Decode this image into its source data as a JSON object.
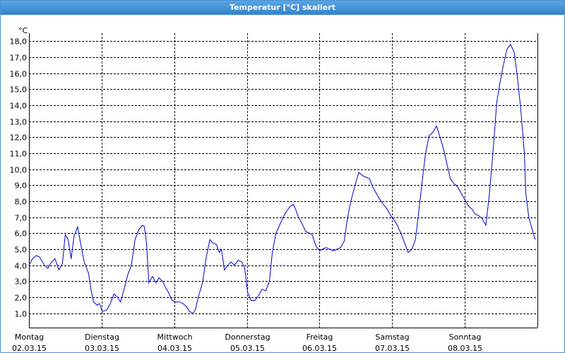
{
  "window_title": "Temperatur [°C] skaliert",
  "chart_data": {
    "type": "line",
    "y_unit": "°C",
    "xlim": [
      0,
      7
    ],
    "ylim": [
      0.1,
      18.5
    ],
    "grid": true,
    "xticks": [
      {
        "value": 0,
        "label": [
          "Montag",
          "02.03.15"
        ]
      },
      {
        "value": 1,
        "label": [
          "Dienstag",
          "03.03.15"
        ]
      },
      {
        "value": 2,
        "label": [
          "Mittwoch",
          "04.03.15"
        ]
      },
      {
        "value": 3,
        "label": [
          "Donnerstag",
          "05.03.15"
        ]
      },
      {
        "value": 4,
        "label": [
          "Freitag",
          "06.03.15"
        ]
      },
      {
        "value": 5,
        "label": [
          "Samstag",
          "07.03.15"
        ]
      },
      {
        "value": 6,
        "label": [
          "Sonntag",
          "08.03.15"
        ]
      }
    ],
    "yticks": [
      {
        "value": 1,
        "label": "1,0"
      },
      {
        "value": 2,
        "label": "2,0"
      },
      {
        "value": 3,
        "label": "3,0"
      },
      {
        "value": 4,
        "label": "4,0"
      },
      {
        "value": 5,
        "label": "5,0"
      },
      {
        "value": 6,
        "label": "6,0"
      },
      {
        "value": 7,
        "label": "7,0"
      },
      {
        "value": 8,
        "label": "8,0"
      },
      {
        "value": 9,
        "label": "9,0"
      },
      {
        "value": 10,
        "label": "10,0"
      },
      {
        "value": 11,
        "label": "11,0"
      },
      {
        "value": 12,
        "label": "12,0"
      },
      {
        "value": 13,
        "label": "13,0"
      },
      {
        "value": 14,
        "label": "14,0"
      },
      {
        "value": 15,
        "label": "15,0"
      },
      {
        "value": 16,
        "label": "16,0"
      },
      {
        "value": 17,
        "label": "17,0"
      },
      {
        "value": 18,
        "label": "18,0"
      }
    ],
    "x": [
      0,
      0.05,
      0.1,
      0.15,
      0.21,
      0.26,
      0.31,
      0.36,
      0.41,
      0.46,
      0.5,
      0.54,
      0.58,
      0.62,
      0.67,
      0.71,
      0.76,
      0.82,
      0.86,
      0.89,
      0.94,
      0.97,
      1.01,
      1.07,
      1.12,
      1.17,
      1.22,
      1.26,
      1.31,
      1.36,
      1.41,
      1.46,
      1.51,
      1.56,
      1.59,
      1.62,
      1.65,
      1.7,
      1.75,
      1.79,
      1.84,
      1.88,
      1.92,
      1.97,
      2.02,
      2.07,
      2.12,
      2.17,
      2.21,
      2.26,
      2.29,
      2.33,
      2.39,
      2.44,
      2.49,
      2.53,
      2.58,
      2.62,
      2.65,
      2.69,
      2.74,
      2.78,
      2.83,
      2.88,
      2.93,
      2.97,
      3.01,
      3.06,
      3.11,
      3.16,
      3.21,
      3.26,
      3.31,
      3.35,
      3.4,
      3.45,
      3.5,
      3.55,
      3.6,
      3.64,
      3.67,
      3.71,
      3.76,
      3.81,
      3.86,
      3.9,
      3.95,
      4.0,
      4.04,
      4.09,
      4.14,
      4.19,
      4.24,
      4.29,
      4.34,
      4.38,
      4.43,
      4.49,
      4.54,
      4.59,
      4.64,
      4.69,
      4.73,
      4.78,
      4.83,
      4.88,
      4.93,
      4.98,
      5.03,
      5.07,
      5.12,
      5.17,
      5.22,
      5.27,
      5.32,
      5.37,
      5.42,
      5.46,
      5.51,
      5.56,
      5.61,
      5.66,
      5.71,
      5.76,
      5.8,
      5.85,
      5.9,
      5.95,
      6.0,
      6.05,
      6.1,
      6.14,
      6.19,
      6.24,
      6.29,
      6.34,
      6.39,
      6.44,
      6.48,
      6.53,
      6.58,
      6.63,
      6.68,
      6.72,
      6.77,
      6.82,
      6.84,
      6.88,
      6.93,
      6.97
    ],
    "series": [
      {
        "color": "#0000c8",
        "values": [
          4.0,
          4.4,
          4.6,
          4.5,
          4.0,
          3.8,
          4.2,
          4.4,
          3.7,
          4.1,
          5.9,
          5.6,
          4.4,
          5.8,
          6.4,
          5.4,
          4.2,
          3.5,
          2.3,
          1.7,
          1.5,
          1.6,
          1.1,
          1.2,
          1.6,
          2.2,
          2.0,
          1.7,
          2.5,
          3.4,
          4.0,
          5.6,
          6.2,
          6.5,
          6.4,
          5.3,
          2.9,
          3.3,
          2.9,
          3.2,
          3.0,
          2.6,
          2.3,
          1.8,
          1.7,
          1.7,
          1.6,
          1.4,
          1.1,
          1.0,
          1.2,
          2.0,
          2.9,
          4.5,
          5.6,
          5.4,
          5.3,
          4.8,
          5.0,
          3.7,
          4.0,
          4.2,
          4.0,
          4.3,
          4.2,
          3.8,
          2.3,
          1.8,
          1.8,
          2.1,
          2.5,
          2.4,
          3.0,
          4.8,
          6.0,
          6.5,
          7.0,
          7.4,
          7.7,
          7.8,
          7.5,
          7.0,
          6.6,
          6.1,
          6.0,
          5.9,
          5.2,
          4.9,
          5.0,
          5.1,
          5.0,
          4.9,
          5.0,
          5.1,
          5.5,
          6.8,
          8.0,
          9.0,
          9.8,
          9.6,
          9.5,
          9.4,
          8.9,
          8.5,
          8.1,
          7.8,
          7.5,
          7.1,
          6.8,
          6.5,
          6.0,
          5.4,
          4.8,
          5.0,
          5.6,
          7.5,
          9.5,
          11.0,
          12.1,
          12.3,
          12.7,
          12.0,
          11.2,
          10.2,
          9.4,
          9.1,
          8.9,
          8.5,
          8.1,
          7.7,
          7.5,
          7.2,
          7.1,
          6.9,
          6.5,
          8.5,
          11.2,
          14.2,
          15.3,
          16.5,
          17.5,
          17.8,
          17.3,
          15.9,
          13.8,
          11.0,
          8.5,
          7.0,
          6.2,
          5.6
        ]
      }
    ]
  }
}
